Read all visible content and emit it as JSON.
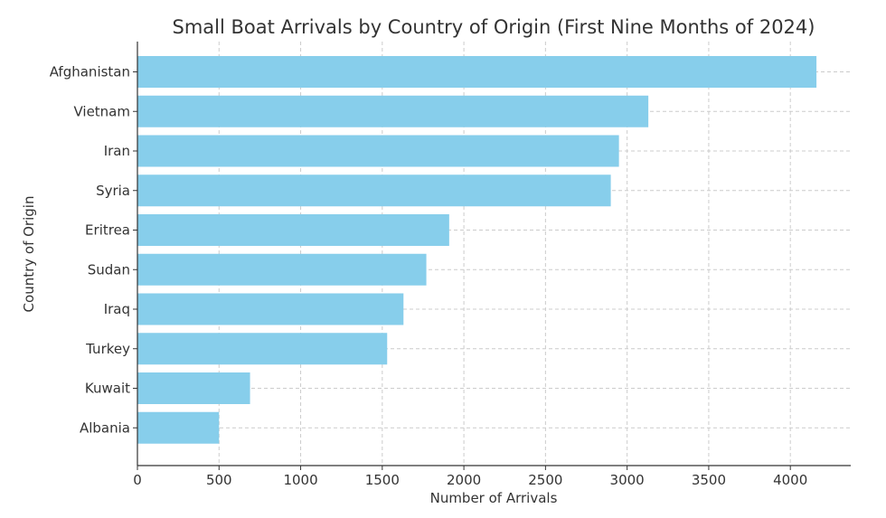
{
  "chart_data": {
    "type": "bar",
    "orientation": "horizontal",
    "title": "Small Boat Arrivals by Country of Origin (First Nine Months of 2024)",
    "xlabel": "Number of Arrivals",
    "ylabel": "Country of Origin",
    "categories": [
      "Afghanistan",
      "Vietnam",
      "Iran",
      "Syria",
      "Eritrea",
      "Sudan",
      "Iraq",
      "Turkey",
      "Kuwait",
      "Albania"
    ],
    "values": [
      4160,
      3130,
      2950,
      2900,
      1910,
      1770,
      1630,
      1530,
      690,
      500
    ],
    "xlim": [
      0,
      4370
    ],
    "xticks": [
      0,
      500,
      1000,
      1500,
      2000,
      2500,
      3000,
      3500,
      4000
    ],
    "grid": true,
    "bar_color": "#87ceeb"
  }
}
